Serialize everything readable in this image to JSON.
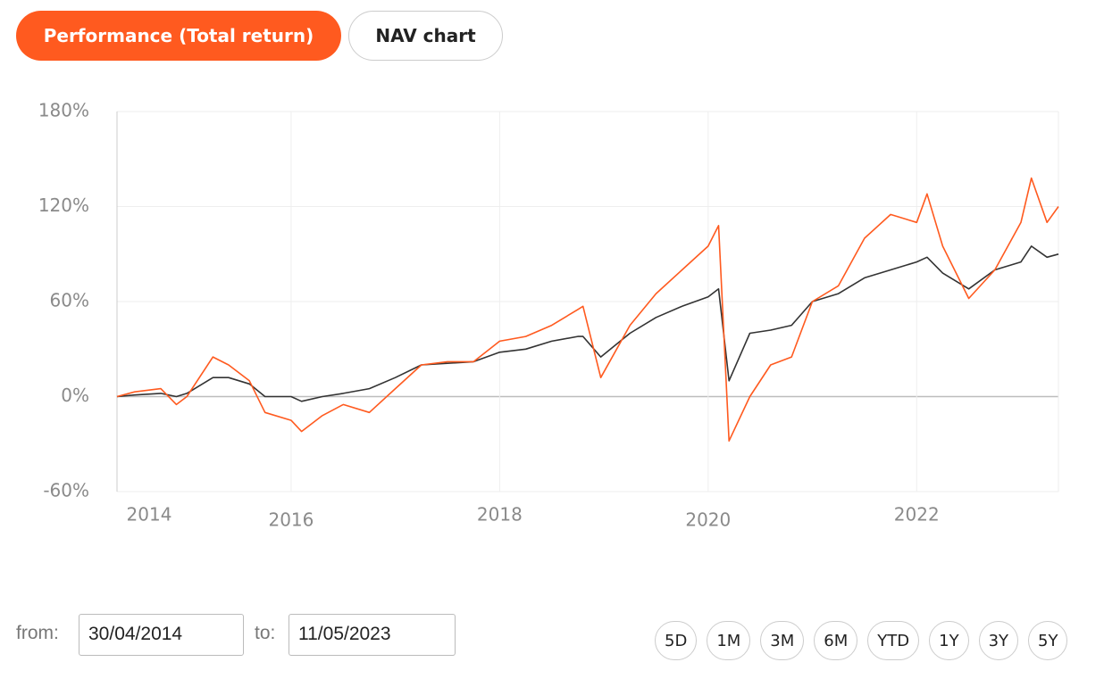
{
  "tabs": [
    "Performance (Total return)",
    "NAV chart"
  ],
  "chart_data": {
    "type": "line",
    "x": [
      2014.33,
      2014.5,
      2014.75,
      2014.9,
      2015.0,
      2015.25,
      2015.4,
      2015.6,
      2015.75,
      2016.0,
      2016.1,
      2016.3,
      2016.5,
      2016.75,
      2017.0,
      2017.25,
      2017.5,
      2017.75,
      2018.0,
      2018.25,
      2018.5,
      2018.75,
      2018.8,
      2018.97,
      2019.25,
      2019.5,
      2019.75,
      2020.0,
      2020.1,
      2020.2,
      2020.4,
      2020.6,
      2020.8,
      2021.0,
      2021.25,
      2021.5,
      2021.75,
      2022.0,
      2022.1,
      2022.25,
      2022.5,
      2022.75,
      2023.0,
      2023.1,
      2023.25,
      2023.36
    ],
    "series": [
      {
        "color": "#333333",
        "values": [
          0,
          1,
          2,
          0,
          2,
          12,
          12,
          8,
          0,
          0,
          -3,
          0,
          2,
          5,
          12,
          20,
          21,
          22,
          28,
          30,
          35,
          38,
          38,
          25,
          40,
          50,
          57,
          63,
          68,
          10,
          40,
          42,
          45,
          60,
          65,
          75,
          80,
          85,
          88,
          78,
          68,
          80,
          85,
          95,
          88,
          90
        ]
      },
      {
        "color": "#ff5a1f",
        "values": [
          0,
          3,
          5,
          -5,
          0,
          25,
          20,
          10,
          -10,
          -15,
          -22,
          -12,
          -5,
          -10,
          5,
          20,
          22,
          22,
          35,
          38,
          45,
          55,
          57,
          12,
          45,
          65,
          80,
          95,
          108,
          -28,
          0,
          20,
          25,
          60,
          70,
          100,
          115,
          110,
          128,
          95,
          62,
          80,
          110,
          138,
          110,
          120
        ]
      }
    ],
    "xlim": [
      2014.33,
      2023.36
    ],
    "xticks": [
      2014,
      2016,
      2018,
      2020,
      2022
    ],
    "ylim": [
      -60,
      180
    ],
    "yticks": [
      {
        "value": -60,
        "label": "-60%"
      },
      {
        "value": 0,
        "label": "0%"
      },
      {
        "value": 60,
        "label": "60%"
      },
      {
        "value": 120,
        "label": "120%"
      },
      {
        "value": 180,
        "label": "180%"
      }
    ],
    "grid": true
  },
  "range": {
    "from_label": "from:",
    "from": "30/04/2014",
    "to_label": "to:",
    "to": "11/05/2023",
    "periods": [
      "5D",
      "1M",
      "3M",
      "6M",
      "YTD",
      "1Y",
      "3Y",
      "5Y"
    ]
  }
}
